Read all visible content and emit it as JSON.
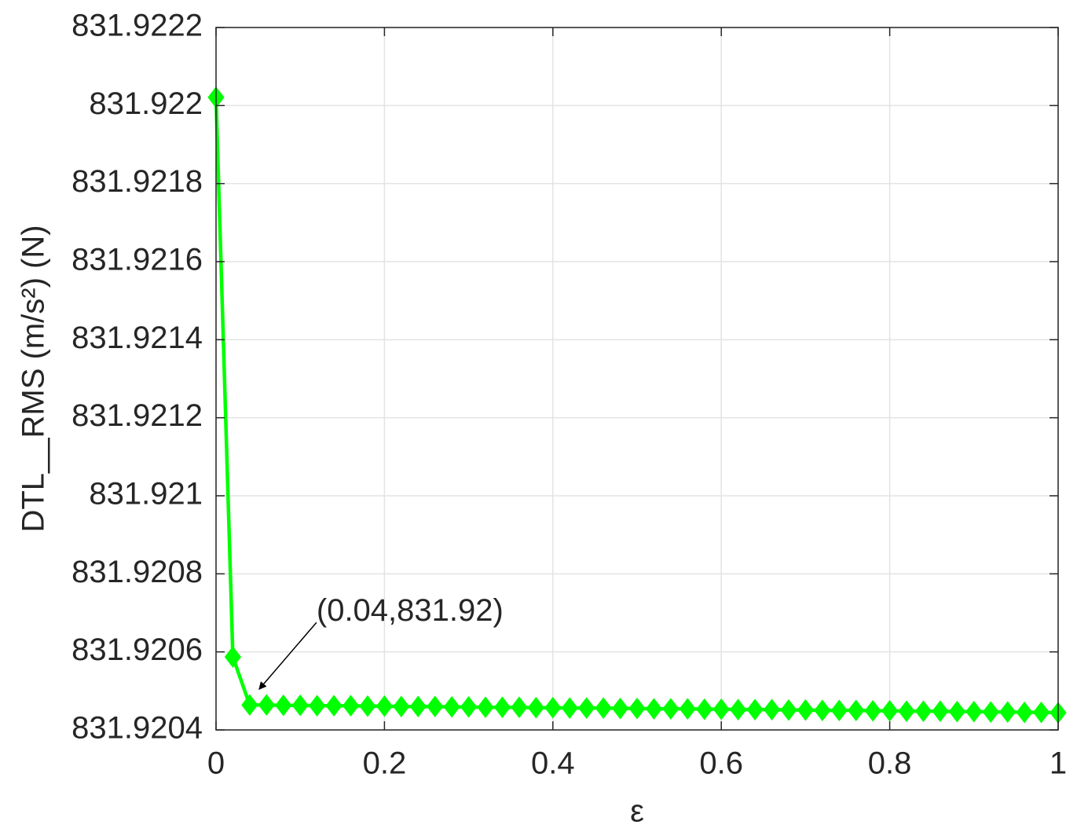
{
  "chart_data": {
    "type": "line",
    "x_label": "ε",
    "y_label": "DTL__RMS (m/s²) (N)",
    "annotation": "(0.04,831.92)",
    "color": "#00ff00",
    "marker": "diamond",
    "grid": true,
    "x": [
      0,
      0.02,
      0.04,
      0.06,
      0.08,
      0.1,
      0.12,
      0.14,
      0.16,
      0.18,
      0.2,
      0.22,
      0.24,
      0.26,
      0.28,
      0.3,
      0.32,
      0.34,
      0.36,
      0.38,
      0.4,
      0.42,
      0.44,
      0.46,
      0.48,
      0.5,
      0.52,
      0.54,
      0.56,
      0.58,
      0.6,
      0.62,
      0.64,
      0.66,
      0.68,
      0.7,
      0.72,
      0.74,
      0.76,
      0.78,
      0.8,
      0.82,
      0.84,
      0.86,
      0.88,
      0.9,
      0.92,
      0.94,
      0.96,
      0.98,
      1
    ],
    "values": [
      831.922021,
      831.920587,
      831.920464,
      831.920464,
      831.920463,
      831.920463,
      831.920462,
      831.920462,
      831.920462,
      831.920461,
      831.920461,
      831.92046,
      831.92046,
      831.92046,
      831.920459,
      831.920459,
      831.920458,
      831.920458,
      831.920458,
      831.920457,
      831.920457,
      831.920456,
      831.920456,
      831.920456,
      831.920455,
      831.920455,
      831.920454,
      831.920454,
      831.920454,
      831.920453,
      831.920453,
      831.920452,
      831.920452,
      831.920452,
      831.920451,
      831.920451,
      831.92045,
      831.92045,
      831.92045,
      831.920449,
      831.920449,
      831.920448,
      831.920448,
      831.920448,
      831.920447,
      831.920447,
      831.920446,
      831.920446,
      831.920445,
      831.920445,
      831.920444
    ],
    "xlim": [
      0,
      1
    ],
    "xticks": [
      0,
      0.2,
      0.4,
      0.6,
      0.8,
      1
    ],
    "ylim": [
      831.9204,
      831.9222
    ],
    "yticks": [
      831.9204,
      831.9206,
      831.9208,
      831.921,
      831.9212,
      831.9214,
      831.9216,
      831.9218,
      831.922,
      831.9222
    ]
  }
}
